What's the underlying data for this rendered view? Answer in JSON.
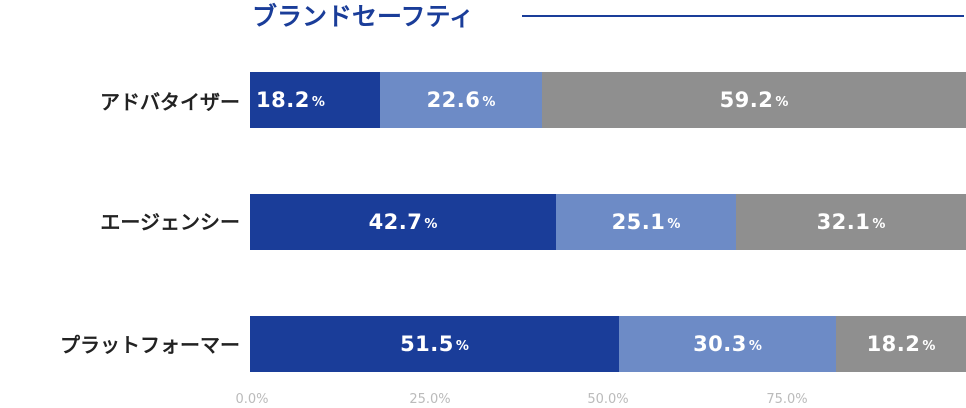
{
  "chart_data": {
    "type": "bar",
    "orientation": "horizontal",
    "stacked": true,
    "title": "ブランドセーフティ",
    "categories": [
      "アドバタイザー",
      "エージェンシー",
      "プラットフォーマー"
    ],
    "series": [
      {
        "values": [
          18.2,
          42.7,
          51.5
        ],
        "color": "#1a3d99"
      },
      {
        "values": [
          22.6,
          25.1,
          30.3
        ],
        "color": "#6d8bc6"
      },
      {
        "values": [
          59.2,
          32.1,
          18.2
        ],
        "color": "#8f8f8f"
      }
    ],
    "percent_suffix": "%",
    "x_ticks": [
      "0.0%",
      "25.0%",
      "50.0%",
      "75.0%"
    ],
    "xlim": [
      0,
      100
    ],
    "legend": "none",
    "grid": false
  }
}
